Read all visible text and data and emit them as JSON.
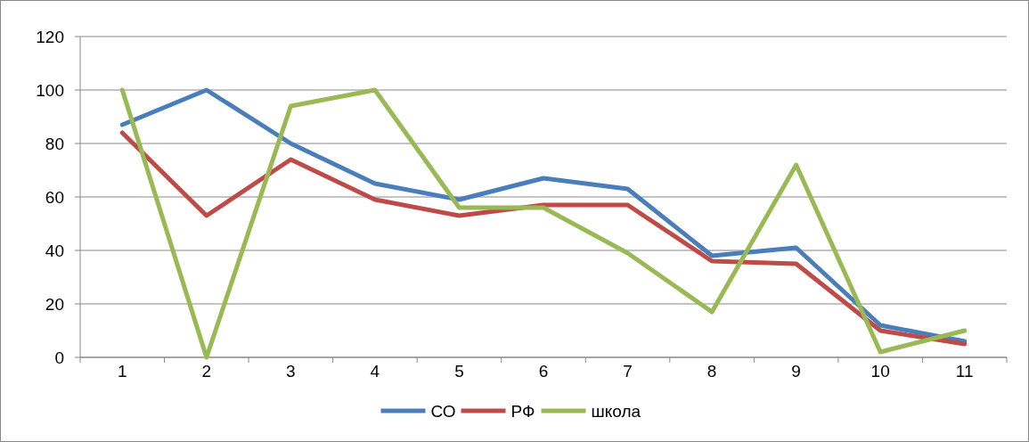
{
  "chart_data": {
    "type": "line",
    "categories": [
      "1",
      "2",
      "3",
      "4",
      "5",
      "6",
      "7",
      "8",
      "9",
      "10",
      "11"
    ],
    "series": [
      {
        "name": "СО",
        "color": "#4a7ebb",
        "values": [
          87,
          100,
          80,
          65,
          59,
          67,
          63,
          38,
          41,
          12,
          6
        ]
      },
      {
        "name": "РФ",
        "color": "#be4b48",
        "values": [
          84,
          53,
          74,
          59,
          53,
          57,
          57,
          36,
          35,
          10,
          5
        ]
      },
      {
        "name": "школа",
        "color": "#98b954",
        "values": [
          100,
          0,
          94,
          100,
          56,
          56,
          39,
          17,
          72,
          2,
          10
        ]
      }
    ],
    "ylim": [
      0,
      120
    ],
    "yticks": [
      0,
      20,
      40,
      60,
      80,
      100,
      120
    ],
    "grid": "y",
    "legend": "bottom",
    "marker": "none",
    "line_style": "solid"
  }
}
